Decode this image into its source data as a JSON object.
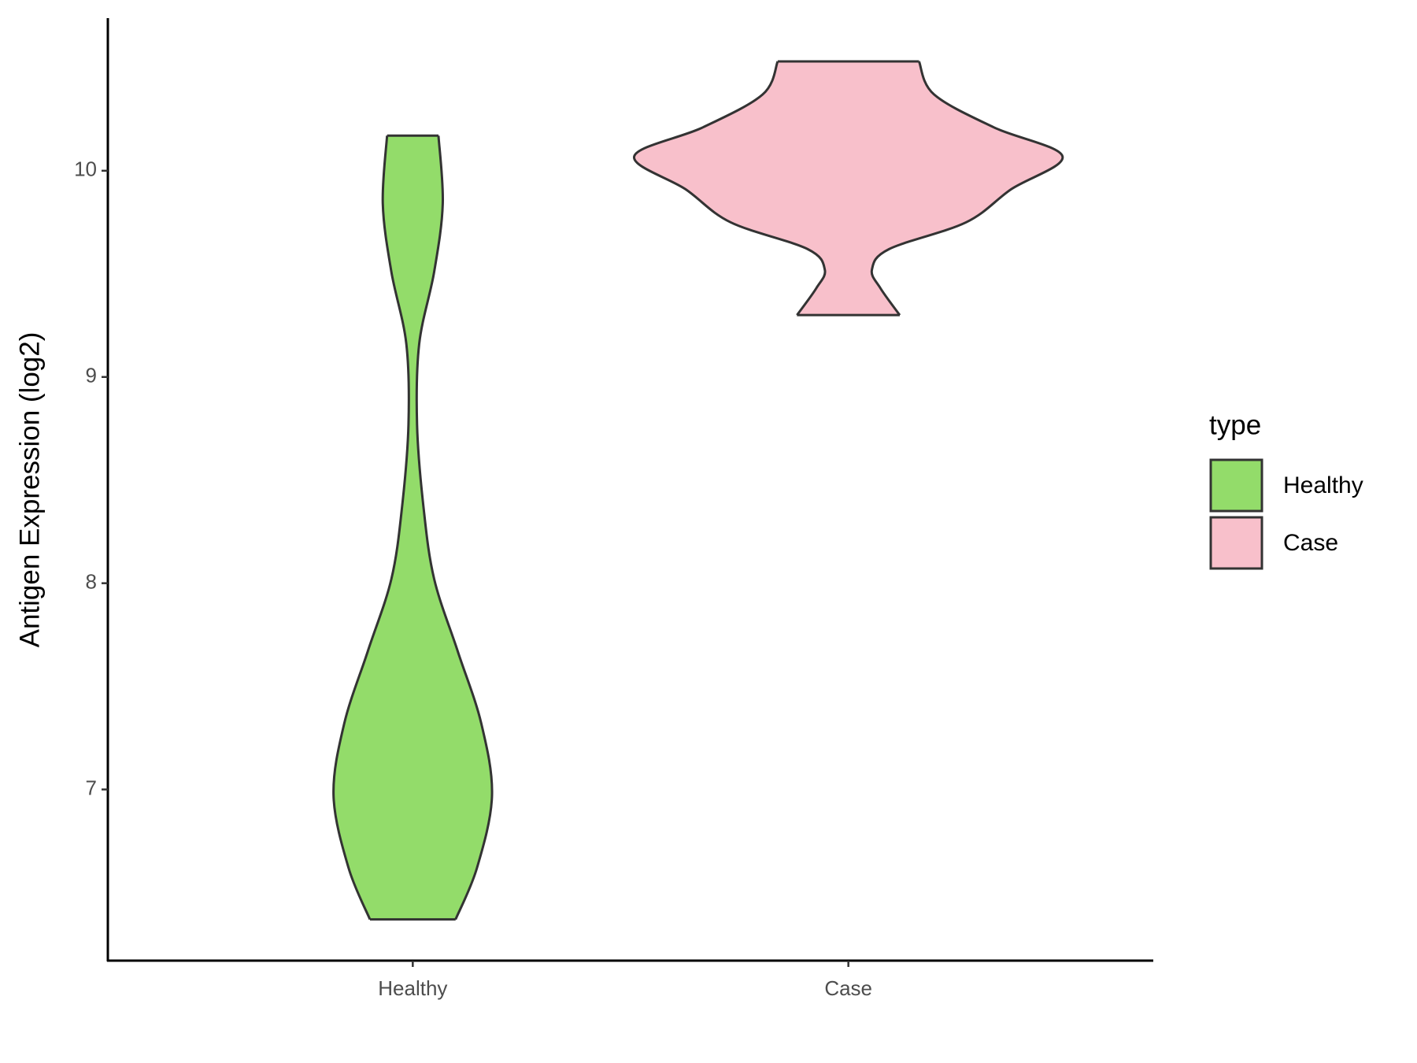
{
  "chart_data": {
    "type": "violin",
    "y_label": "Antigen Expression (log2)",
    "legend_title": "type",
    "categories": [
      "Healthy",
      "Case"
    ],
    "series": [
      {
        "name": "Healthy",
        "color": "#93dc6a",
        "y": [
          6.37,
          6.62,
          6.97,
          7.32,
          7.67,
          8.02,
          8.37,
          8.77,
          9.16,
          9.51,
          9.84,
          10.17
        ],
        "density": [
          0.2,
          0.3,
          0.37,
          0.32,
          0.21,
          0.1,
          0.05,
          0.02,
          0.03,
          0.1,
          0.14,
          0.12
        ]
      },
      {
        "name": "Case",
        "color": "#f8c0cb",
        "y": [
          9.3,
          9.43,
          9.52,
          9.62,
          9.75,
          9.91,
          10.07,
          10.21,
          10.37,
          10.53
        ],
        "density": [
          0.24,
          0.15,
          0.11,
          0.19,
          0.55,
          0.76,
          1.0,
          0.68,
          0.4,
          0.33
        ]
      }
    ],
    "ylim": [
      6.17,
      10.74
    ],
    "yticks": [
      7,
      8,
      9,
      10
    ],
    "grid": false,
    "legend": "right"
  }
}
